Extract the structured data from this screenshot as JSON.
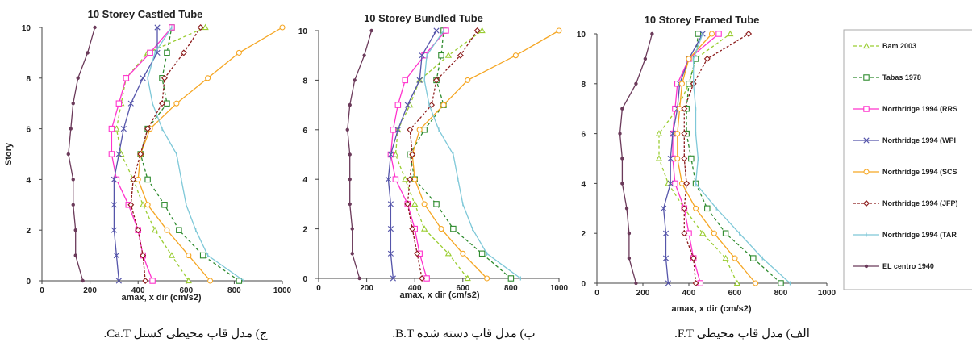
{
  "captions": [
    "ج) مدل قاب محیطی کستل Ca.T.",
    "ب) مدل قاب دسته شده B.T.",
    "الف) مدل قاب محیطی F.T."
  ],
  "legend": [
    {
      "name": "Bam 2003",
      "color": "#9ACD32",
      "marker": "triangle",
      "dash": "4,3"
    },
    {
      "name": "Tabas 1978",
      "color": "#2E8B2E",
      "marker": "square",
      "dash": "4,3"
    },
    {
      "name": "Northridge 1994  (RRS",
      "color": "#FF33CC",
      "marker": "square",
      "dash": ""
    },
    {
      "name": "Northridge 1994  (WPI",
      "color": "#5555AA",
      "marker": "x",
      "dash": ""
    },
    {
      "name": "Northridge 1994  (SCS",
      "color": "#F5A623",
      "marker": "circle",
      "dash": ""
    },
    {
      "name": "Northridge 1994  (JFP)",
      "color": "#8B1A1A",
      "marker": "diamond",
      "dash": "3,2"
    },
    {
      "name": "Northridge 1994  (TAR",
      "color": "#7EC8D8",
      "marker": "dash",
      "dash": ""
    },
    {
      "name": "EL centro 1940",
      "color": "#6B3A5A",
      "marker": "dot",
      "dash": ""
    }
  ],
  "chart_data": [
    {
      "type": "line",
      "title": "10 Storey Castled Tube",
      "xlabel": "amax, x dir (cm/s2)",
      "ylabel": "Story",
      "xlim": [
        0,
        1000
      ],
      "ylim": [
        0,
        10
      ],
      "xticks": [
        "0",
        "200",
        "400",
        "600",
        "800",
        "1000"
      ],
      "yticks": [
        "0",
        "2",
        "4",
        "6",
        "8",
        "10"
      ],
      "y": [
        0,
        1,
        2,
        3,
        4,
        5,
        6,
        7,
        8,
        9,
        10
      ],
      "series": [
        {
          "name": "Bam 2003",
          "values": [
            610,
            540,
            470,
            420,
            380,
            330,
            310,
            330,
            350,
            440,
            680
          ]
        },
        {
          "name": "Tabas 1978",
          "values": [
            820,
            670,
            570,
            510,
            440,
            410,
            440,
            520,
            500,
            520,
            540
          ]
        },
        {
          "name": "Northridge 1994  (RRS",
          "values": [
            460,
            420,
            400,
            360,
            310,
            290,
            290,
            320,
            350,
            450,
            540
          ]
        },
        {
          "name": "Northridge 1994  (WPI",
          "values": [
            320,
            310,
            300,
            300,
            300,
            320,
            340,
            370,
            420,
            480,
            480
          ]
        },
        {
          "name": "Northridge 1994  (SCS",
          "values": [
            700,
            610,
            520,
            440,
            400,
            410,
            450,
            560,
            690,
            820,
            1000
          ]
        },
        {
          "name": "Northridge 1994  (JFP)",
          "values": [
            430,
            420,
            400,
            370,
            380,
            410,
            440,
            500,
            510,
            590,
            660
          ]
        },
        {
          "name": "Northridge 1994  (TAR",
          "values": [
            840,
            690,
            640,
            600,
            580,
            560,
            500,
            460,
            440,
            470,
            540
          ]
        },
        {
          "name": "EL centro 1940",
          "values": [
            170,
            140,
            140,
            130,
            130,
            110,
            120,
            130,
            150,
            190,
            220
          ]
        }
      ]
    },
    {
      "type": "line",
      "title": "10 Storey Bundled Tube",
      "xlabel": "amax, x dir (cm/s2)",
      "ylabel": "",
      "xlim": [
        0,
        1000
      ],
      "ylim": [
        0,
        10
      ],
      "xticks": [
        "0",
        "200",
        "400",
        "600",
        "800",
        "1000"
      ],
      "yticks": [
        "0",
        "2",
        "4",
        "6",
        "8",
        "10"
      ],
      "y": [
        0,
        1,
        2,
        3,
        4,
        5,
        6,
        7,
        8,
        9,
        10
      ],
      "series": [
        {
          "name": "Bam 2003",
          "values": [
            620,
            540,
            440,
            400,
            360,
            320,
            330,
            380,
            420,
            540,
            680
          ]
        },
        {
          "name": "Tabas 1978",
          "values": [
            800,
            680,
            560,
            490,
            400,
            380,
            440,
            520,
            490,
            510,
            520
          ]
        },
        {
          "name": "Northridge 1994  (RRS",
          "values": [
            450,
            420,
            400,
            370,
            320,
            300,
            310,
            330,
            360,
            440,
            530
          ]
        },
        {
          "name": "Northridge 1994  (WPI",
          "values": [
            310,
            300,
            300,
            300,
            290,
            300,
            330,
            370,
            420,
            430,
            490
          ]
        },
        {
          "name": "Northridge 1994  (SCS",
          "values": [
            700,
            600,
            510,
            440,
            400,
            390,
            420,
            520,
            620,
            820,
            1000
          ]
        },
        {
          "name": "Northridge 1994  (JFP)",
          "values": [
            430,
            410,
            390,
            370,
            380,
            390,
            380,
            470,
            490,
            590,
            660
          ]
        },
        {
          "name": "Northridge 1994  (TAR",
          "values": [
            840,
            700,
            640,
            600,
            580,
            560,
            500,
            460,
            440,
            450,
            520
          ]
        },
        {
          "name": "EL centro 1940",
          "values": [
            170,
            140,
            140,
            130,
            130,
            130,
            120,
            130,
            150,
            190,
            220
          ]
        }
      ]
    },
    {
      "type": "line",
      "title": "10 Storey Framed Tube",
      "xlabel": "amax, x dir (cm/s2)",
      "ylabel": "",
      "xlim": [
        0,
        1000
      ],
      "ylim": [
        0,
        10
      ],
      "xticks": [
        "0",
        "200",
        "400",
        "600",
        "800",
        "1000"
      ],
      "yticks": [
        "0",
        "2",
        "4",
        "6",
        "8",
        "10"
      ],
      "y": [
        0,
        1,
        2,
        3,
        4,
        5,
        6,
        7,
        8,
        9,
        10
      ],
      "series": [
        {
          "name": "Bam 2003",
          "values": [
            610,
            560,
            460,
            380,
            310,
            270,
            270,
            350,
            400,
            430,
            580
          ]
        },
        {
          "name": "Tabas 1978",
          "values": [
            800,
            680,
            560,
            480,
            430,
            410,
            390,
            390,
            400,
            430,
            440
          ]
        },
        {
          "name": "Northridge 1994  (RRS",
          "values": [
            450,
            420,
            400,
            380,
            340,
            330,
            330,
            340,
            350,
            400,
            530
          ]
        },
        {
          "name": "Northridge 1994  (WPI",
          "values": [
            310,
            300,
            300,
            290,
            320,
            320,
            330,
            350,
            360,
            400,
            460
          ]
        },
        {
          "name": "Northridge 1994  (SCS",
          "values": [
            690,
            600,
            510,
            430,
            370,
            350,
            350,
            360,
            370,
            400,
            500
          ]
        },
        {
          "name": "Northridge 1994  (JFP)",
          "values": [
            430,
            420,
            380,
            380,
            390,
            380,
            380,
            380,
            420,
            480,
            660
          ]
        },
        {
          "name": "Northridge 1994  (TAR",
          "values": [
            840,
            720,
            620,
            520,
            430,
            440,
            430,
            430,
            420,
            420,
            460
          ]
        },
        {
          "name": "EL centro 1940",
          "values": [
            170,
            140,
            140,
            130,
            110,
            110,
            100,
            110,
            170,
            210,
            240
          ]
        }
      ]
    }
  ]
}
